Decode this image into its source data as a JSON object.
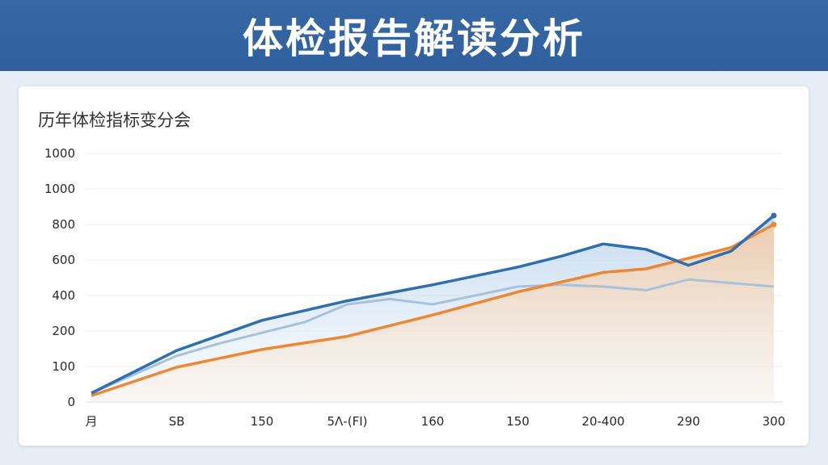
{
  "header": {
    "title": "体检报告解读分析"
  },
  "chart_data": {
    "type": "area",
    "title": "历年体检指标变分会",
    "xlabel": "",
    "ylabel": "",
    "y_tick_labels": [
      "0",
      "100",
      "200",
      "400",
      "600",
      "800",
      "1000",
      "1000"
    ],
    "x_tick_labels": [
      "月",
      "SB",
      "150",
      "5Λ-(FI)",
      "160",
      "150",
      "20-400",
      "290",
      "300"
    ],
    "grid": true,
    "series": [
      {
        "color": "#2f6fb0",
        "values": [
          [
            0,
            0.25
          ],
          [
            1,
            1.45
          ],
          [
            2,
            2.3
          ],
          [
            3,
            2.85
          ],
          [
            4,
            3.3
          ],
          [
            5,
            3.8
          ],
          [
            5.5,
            4.1
          ],
          [
            6,
            4.45
          ],
          [
            6.5,
            4.3
          ],
          [
            7,
            3.85
          ],
          [
            7.5,
            4.25
          ],
          [
            8,
            5.25
          ]
        ]
      },
      {
        "color": "#a9c2da",
        "values": [
          [
            0,
            0.25
          ],
          [
            1,
            1.3
          ],
          [
            1.5,
            1.65
          ],
          [
            2,
            1.95
          ],
          [
            2.5,
            2.25
          ],
          [
            3,
            2.75
          ],
          [
            3.5,
            2.9
          ],
          [
            4,
            2.75
          ],
          [
            5,
            3.25
          ],
          [
            5.5,
            3.3
          ],
          [
            6,
            3.25
          ],
          [
            6.5,
            3.15
          ],
          [
            7,
            3.45
          ],
          [
            7.5,
            3.35
          ],
          [
            8,
            3.25
          ]
        ]
      },
      {
        "color": "#ee8734",
        "values": [
          [
            0,
            0.18
          ],
          [
            1,
            0.98
          ],
          [
            2,
            1.48
          ],
          [
            3,
            1.85
          ],
          [
            4,
            2.45
          ],
          [
            5,
            3.1
          ],
          [
            6,
            3.65
          ],
          [
            6.5,
            3.75
          ],
          [
            7,
            4.05
          ],
          [
            7.5,
            4.35
          ],
          [
            8,
            5.0
          ]
        ]
      }
    ]
  }
}
